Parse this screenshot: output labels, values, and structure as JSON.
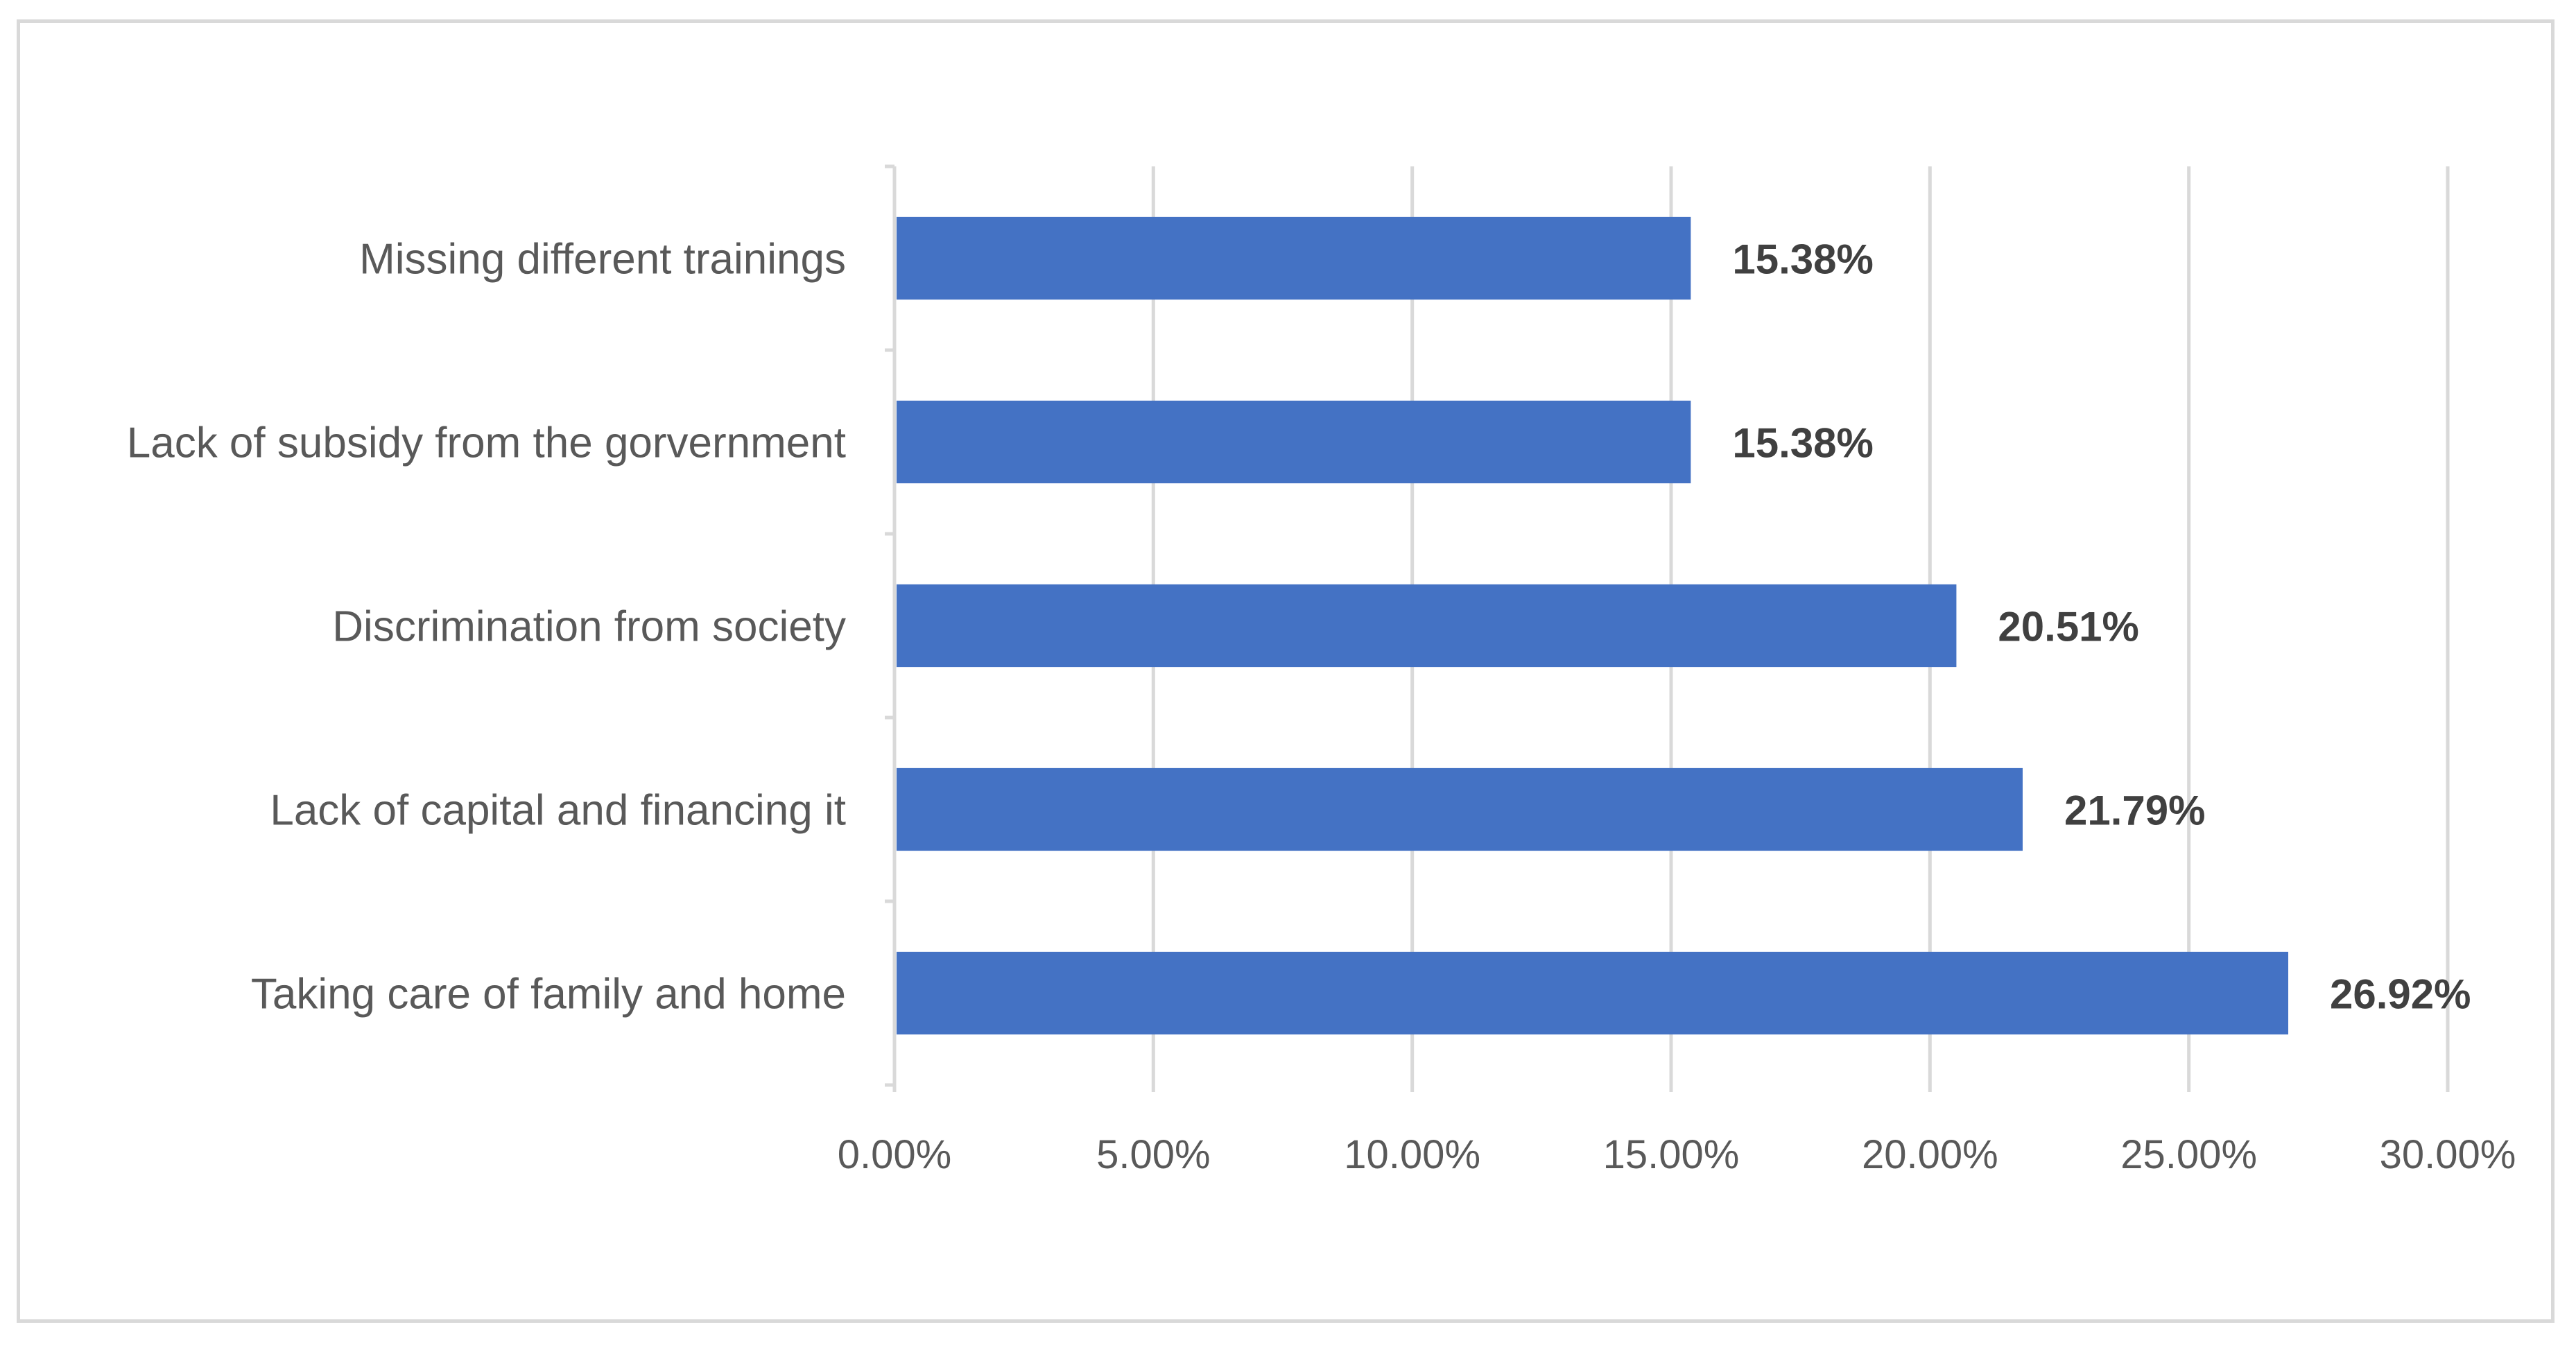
{
  "chart_data": {
    "type": "bar",
    "orientation": "horizontal",
    "categories": [
      "Missing different trainings",
      "Lack of subsidy from the gorvernment",
      "Discrimination from society",
      "Lack of capital and financing it",
      "Taking care of family and home"
    ],
    "values": [
      15.38,
      15.38,
      20.51,
      21.79,
      26.92
    ],
    "value_labels": [
      "15.38%",
      "15.38%",
      "20.51%",
      "21.79%",
      "26.92%"
    ],
    "x_ticks": [
      "0.00%",
      "5.00%",
      "10.00%",
      "15.00%",
      "20.00%",
      "25.00%",
      "30.00%"
    ],
    "xlim": [
      0,
      30
    ],
    "title": "",
    "xlabel": "",
    "ylabel": "",
    "grid": "vertical",
    "legend": "none",
    "colors": {
      "bar": "#4472c4",
      "grid": "#d9d9d9",
      "axis": "#d9d9d9",
      "label": "#595959",
      "value_label": "#404040",
      "frame": "#d9d9d9"
    }
  }
}
